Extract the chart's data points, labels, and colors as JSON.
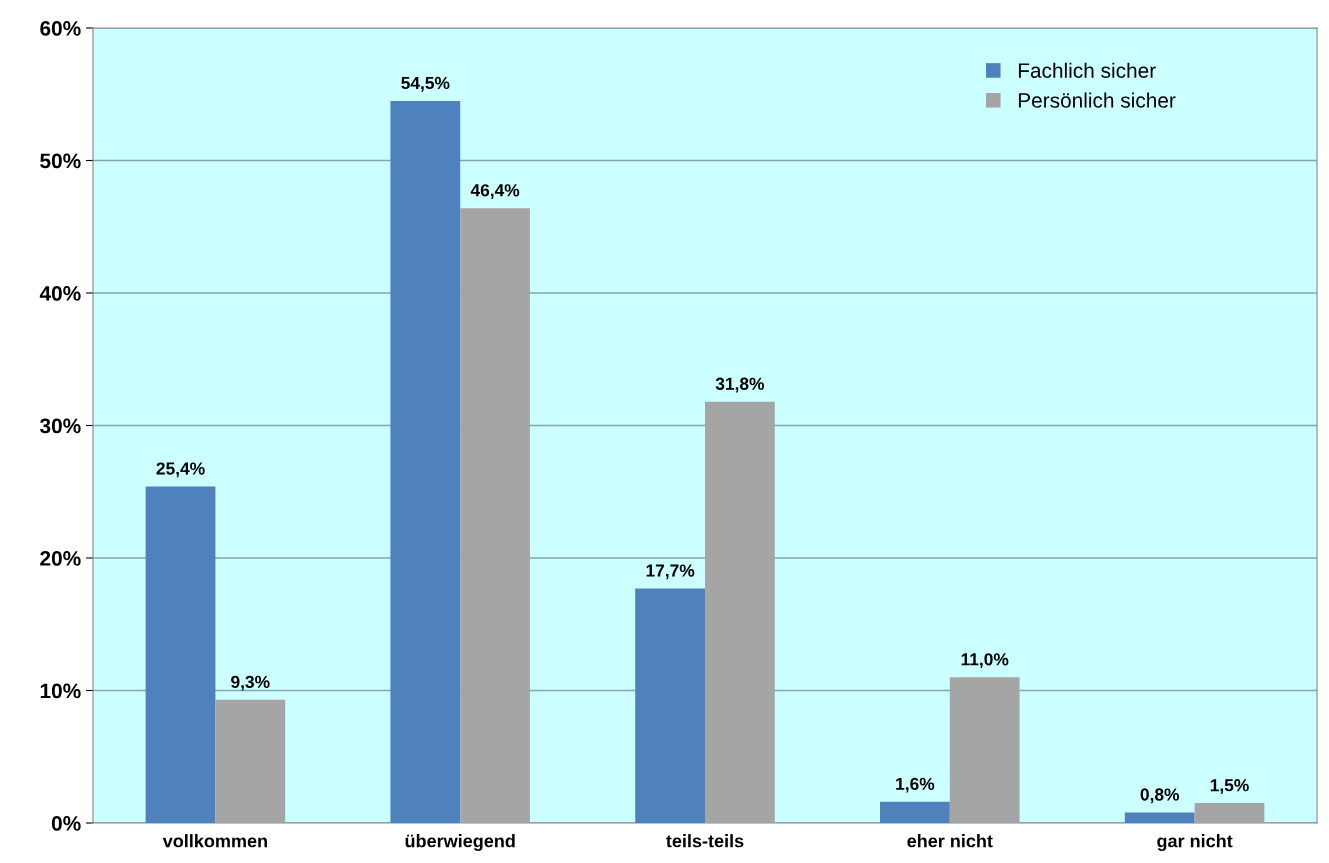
{
  "chart_data": {
    "type": "bar",
    "categories": [
      "vollkommen",
      "überwiegend",
      "teils-teils",
      "eher nicht",
      "gar nicht"
    ],
    "series": [
      {
        "name": "Fachlich sicher",
        "color": "#4f81bd",
        "values": [
          25.4,
          54.5,
          17.7,
          1.6,
          0.8
        ],
        "value_labels": [
          "25,4%",
          "54,5%",
          "17,7%",
          "1,6%",
          "0,8%"
        ]
      },
      {
        "name": "Persönlich sicher",
        "color": "#a5a5a5",
        "values": [
          9.3,
          46.4,
          31.8,
          11.0,
          1.5
        ],
        "value_labels": [
          "9,3%",
          "46,4%",
          "31,8%",
          "11,0%",
          "1,5%"
        ]
      }
    ],
    "ylim": [
      0,
      60
    ],
    "yticks": [
      {
        "value": 0,
        "label": "0%"
      },
      {
        "value": 10,
        "label": "10%"
      },
      {
        "value": 20,
        "label": "20%"
      },
      {
        "value": 30,
        "label": "30%"
      },
      {
        "value": 40,
        "label": "40%"
      },
      {
        "value": 50,
        "label": "50%"
      },
      {
        "value": 60,
        "label": "60%"
      }
    ],
    "grid": "y",
    "legend": "top right"
  }
}
